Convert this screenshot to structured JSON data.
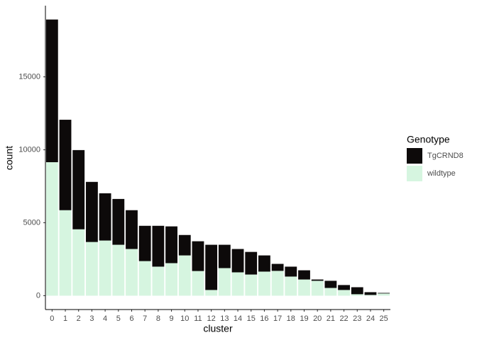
{
  "chart_data": {
    "type": "stacked_bar",
    "x_label": "cluster",
    "y_label": "count",
    "categories": [
      "0",
      "1",
      "2",
      "3",
      "4",
      "5",
      "6",
      "7",
      "8",
      "9",
      "10",
      "11",
      "12",
      "13",
      "14",
      "15",
      "16",
      "17",
      "18",
      "19",
      "20",
      "21",
      "22",
      "23",
      "24",
      "25"
    ],
    "series": [
      {
        "name": "wildtype",
        "color": "#d6f5e0",
        "values": [
          9150,
          5860,
          4550,
          3680,
          3780,
          3490,
          3200,
          2370,
          1990,
          2230,
          2760,
          1690,
          390,
          1890,
          1600,
          1450,
          1650,
          1700,
          1310,
          1110,
          1020,
          530,
          390,
          100,
          50,
          150
        ]
      },
      {
        "name": "TgCRND8",
        "color": "#0d0a0a",
        "values": [
          9780,
          6200,
          5430,
          4120,
          3240,
          3140,
          2660,
          2420,
          2800,
          2520,
          1400,
          2040,
          3100,
          1600,
          1600,
          1550,
          1110,
          480,
          680,
          630,
          90,
          490,
          340,
          480,
          190,
          40
        ]
      }
    ],
    "legend_title": "Genotype",
    "ylim": [
      -950,
      19880
    ],
    "yticks": [
      0,
      5000,
      10000,
      15000
    ],
    "grid": false
  }
}
